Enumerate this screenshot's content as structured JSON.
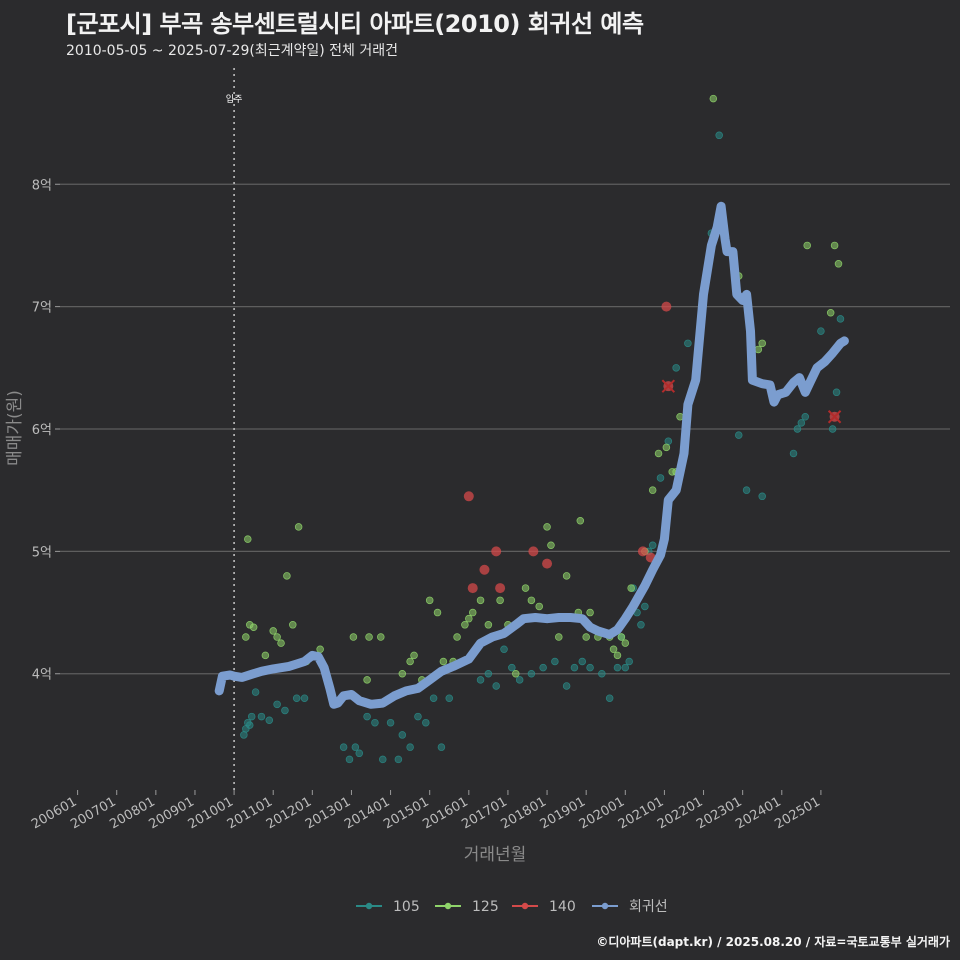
{
  "header": {
    "title": "[군포시] 부곡 송부센트럴시티 아파트(2010) 회귀선 예측",
    "subtitle": "2010-05-05 ~ 2025-07-29(최근계약일) 전체 거래건"
  },
  "footer": {
    "credit": "©디아파트(dapt.kr) / 2025.08.20 / 자료=국토교통부 실거래가"
  },
  "chart_data": {
    "type": "scatter",
    "xlabel": "거래년월",
    "ylabel": "매매가(원)",
    "x_tick_labels": [
      "200601",
      "200701",
      "200801",
      "200901",
      "201001",
      "201101",
      "201201",
      "201301",
      "201401",
      "201501",
      "201601",
      "201701",
      "201801",
      "201901",
      "202001",
      "202101",
      "202201",
      "202301",
      "202401",
      "202501"
    ],
    "y_tick_labels": [
      "4억",
      "5억",
      "6억",
      "7억",
      "8억"
    ],
    "y_tick_values": [
      4,
      5,
      6,
      7,
      8
    ],
    "y_unit": "억",
    "xlim": [
      2005.55,
      2028.3
    ],
    "ylim": [
      3.05,
      8.95
    ],
    "grid": "horizontal",
    "legend_placement": "bottom",
    "annotation": {
      "label": "입주",
      "x": 2010.0
    },
    "colors": {
      "105": "#2a8a86",
      "125": "#8fd46a",
      "140": "#d44a4a",
      "회귀선": "#7b9dcf"
    },
    "series": [
      {
        "name": "105",
        "points": [
          [
            2010.25,
            3.5
          ],
          [
            2010.3,
            3.55
          ],
          [
            2010.35,
            3.6
          ],
          [
            2010.4,
            3.58
          ],
          [
            2010.45,
            3.65
          ],
          [
            2010.55,
            3.85
          ],
          [
            2010.7,
            3.65
          ],
          [
            2010.9,
            3.62
          ],
          [
            2011.1,
            3.75
          ],
          [
            2011.3,
            3.7
          ],
          [
            2011.6,
            3.8
          ],
          [
            2011.8,
            3.8
          ],
          [
            2012.8,
            3.4
          ],
          [
            2012.95,
            3.3
          ],
          [
            2013.1,
            3.4
          ],
          [
            2013.2,
            3.35
          ],
          [
            2013.4,
            3.65
          ],
          [
            2013.6,
            3.6
          ],
          [
            2013.8,
            3.3
          ],
          [
            2014.0,
            3.6
          ],
          [
            2014.2,
            3.3
          ],
          [
            2014.3,
            3.5
          ],
          [
            2014.5,
            3.4
          ],
          [
            2014.7,
            3.65
          ],
          [
            2014.9,
            3.6
          ],
          [
            2015.1,
            3.8
          ],
          [
            2015.3,
            3.4
          ],
          [
            2015.5,
            3.8
          ],
          [
            2016.3,
            3.95
          ],
          [
            2016.5,
            4.0
          ],
          [
            2016.7,
            3.9
          ],
          [
            2016.9,
            4.2
          ],
          [
            2017.1,
            4.05
          ],
          [
            2017.3,
            3.95
          ],
          [
            2017.6,
            4.0
          ],
          [
            2017.9,
            4.05
          ],
          [
            2018.2,
            4.1
          ],
          [
            2018.5,
            3.9
          ],
          [
            2018.7,
            4.05
          ],
          [
            2018.9,
            4.1
          ],
          [
            2019.1,
            4.05
          ],
          [
            2019.4,
            4.0
          ],
          [
            2019.6,
            3.8
          ],
          [
            2019.8,
            4.05
          ],
          [
            2019.9,
            4.3
          ],
          [
            2020.0,
            4.05
          ],
          [
            2020.1,
            4.1
          ],
          [
            2020.2,
            4.7
          ],
          [
            2020.3,
            4.5
          ],
          [
            2020.4,
            4.4
          ],
          [
            2020.5,
            4.55
          ],
          [
            2020.6,
            5.0
          ],
          [
            2020.7,
            5.05
          ],
          [
            2020.9,
            5.6
          ],
          [
            2021.1,
            5.9
          ],
          [
            2021.3,
            6.5
          ],
          [
            2021.6,
            6.7
          ],
          [
            2022.2,
            7.6
          ],
          [
            2022.4,
            8.4
          ],
          [
            2022.9,
            5.95
          ],
          [
            2023.1,
            5.5
          ],
          [
            2023.5,
            5.45
          ],
          [
            2024.3,
            5.8
          ],
          [
            2024.4,
            6.0
          ],
          [
            2024.5,
            6.05
          ],
          [
            2024.6,
            6.1
          ],
          [
            2025.0,
            6.8
          ],
          [
            2025.3,
            6.0
          ],
          [
            2025.4,
            6.3
          ],
          [
            2025.5,
            6.9
          ]
        ]
      },
      {
        "name": "125",
        "points": [
          [
            2010.3,
            4.3
          ],
          [
            2010.35,
            5.1
          ],
          [
            2010.4,
            4.4
          ],
          [
            2010.5,
            4.38
          ],
          [
            2010.8,
            4.15
          ],
          [
            2011.0,
            4.35
          ],
          [
            2011.1,
            4.3
          ],
          [
            2011.2,
            4.25
          ],
          [
            2011.35,
            4.8
          ],
          [
            2011.5,
            4.4
          ],
          [
            2011.65,
            5.2
          ],
          [
            2011.85,
            4.1
          ],
          [
            2012.2,
            4.2
          ],
          [
            2013.05,
            4.3
          ],
          [
            2013.4,
            3.95
          ],
          [
            2013.45,
            4.3
          ],
          [
            2013.75,
            4.3
          ],
          [
            2014.3,
            4.0
          ],
          [
            2014.5,
            4.1
          ],
          [
            2014.6,
            4.15
          ],
          [
            2014.8,
            3.95
          ],
          [
            2015.0,
            4.6
          ],
          [
            2015.2,
            4.5
          ],
          [
            2015.35,
            4.1
          ],
          [
            2015.5,
            4.05
          ],
          [
            2015.6,
            4.1
          ],
          [
            2015.7,
            4.3
          ],
          [
            2015.9,
            4.4
          ],
          [
            2016.0,
            4.45
          ],
          [
            2016.1,
            4.5
          ],
          [
            2016.3,
            4.6
          ],
          [
            2016.5,
            4.4
          ],
          [
            2016.8,
            4.6
          ],
          [
            2017.0,
            4.4
          ],
          [
            2017.2,
            4.0
          ],
          [
            2017.45,
            4.7
          ],
          [
            2017.6,
            4.6
          ],
          [
            2017.8,
            4.55
          ],
          [
            2018.0,
            5.2
          ],
          [
            2018.1,
            5.05
          ],
          [
            2018.3,
            4.3
          ],
          [
            2018.5,
            4.8
          ],
          [
            2018.8,
            4.5
          ],
          [
            2018.85,
            5.25
          ],
          [
            2019.0,
            4.3
          ],
          [
            2019.1,
            4.5
          ],
          [
            2019.3,
            4.3
          ],
          [
            2019.6,
            4.3
          ],
          [
            2019.7,
            4.2
          ],
          [
            2019.75,
            4.35
          ],
          [
            2019.8,
            4.15
          ],
          [
            2019.9,
            4.3
          ],
          [
            2020.0,
            4.25
          ],
          [
            2020.15,
            4.7
          ],
          [
            2020.3,
            4.6
          ],
          [
            2020.5,
            5.0
          ],
          [
            2020.7,
            5.5
          ],
          [
            2020.85,
            5.8
          ],
          [
            2021.05,
            5.85
          ],
          [
            2021.2,
            5.65
          ],
          [
            2021.3,
            5.65
          ],
          [
            2021.4,
            6.1
          ],
          [
            2021.55,
            6.0
          ],
          [
            2022.25,
            8.7
          ],
          [
            2022.9,
            7.25
          ],
          [
            2023.4,
            6.65
          ],
          [
            2023.5,
            6.7
          ],
          [
            2024.65,
            7.5
          ],
          [
            2025.25,
            6.95
          ],
          [
            2025.35,
            7.5
          ],
          [
            2025.45,
            7.35
          ]
        ]
      },
      {
        "name": "140",
        "points": [
          [
            2016.0,
            5.45
          ],
          [
            2016.1,
            4.7
          ],
          [
            2016.4,
            4.85
          ],
          [
            2016.7,
            5.0
          ],
          [
            2016.8,
            4.7
          ],
          [
            2017.65,
            5.0
          ],
          [
            2018.0,
            4.9
          ],
          [
            2020.45,
            5.0
          ],
          [
            2020.65,
            4.95
          ],
          [
            2021.05,
            7.0
          ],
          [
            2021.1,
            6.35
          ],
          [
            2025.35,
            6.1
          ]
        ]
      },
      {
        "name": "회귀선",
        "points": [
          [
            2009.62,
            3.86
          ],
          [
            2009.7,
            3.98
          ],
          [
            2009.9,
            3.99
          ],
          [
            2010.0,
            3.98
          ],
          [
            2010.2,
            3.97
          ],
          [
            2010.5,
            4.0
          ],
          [
            2010.7,
            4.02
          ],
          [
            2011.0,
            4.04
          ],
          [
            2011.4,
            4.06
          ],
          [
            2011.6,
            4.08
          ],
          [
            2011.8,
            4.1
          ],
          [
            2012.0,
            4.15
          ],
          [
            2012.15,
            4.14
          ],
          [
            2012.3,
            4.05
          ],
          [
            2012.45,
            3.88
          ],
          [
            2012.55,
            3.75
          ],
          [
            2012.65,
            3.76
          ],
          [
            2012.8,
            3.82
          ],
          [
            2013.0,
            3.83
          ],
          [
            2013.2,
            3.78
          ],
          [
            2013.5,
            3.75
          ],
          [
            2013.8,
            3.76
          ],
          [
            2014.1,
            3.82
          ],
          [
            2014.4,
            3.86
          ],
          [
            2014.7,
            3.88
          ],
          [
            2015.0,
            3.95
          ],
          [
            2015.3,
            4.02
          ],
          [
            2015.6,
            4.06
          ],
          [
            2016.0,
            4.12
          ],
          [
            2016.3,
            4.25
          ],
          [
            2016.6,
            4.3
          ],
          [
            2016.9,
            4.33
          ],
          [
            2017.2,
            4.4
          ],
          [
            2017.4,
            4.45
          ],
          [
            2017.7,
            4.46
          ],
          [
            2018.0,
            4.45
          ],
          [
            2018.3,
            4.46
          ],
          [
            2018.6,
            4.46
          ],
          [
            2018.9,
            4.45
          ],
          [
            2019.1,
            4.38
          ],
          [
            2019.3,
            4.35
          ],
          [
            2019.6,
            4.32
          ],
          [
            2019.8,
            4.36
          ],
          [
            2020.0,
            4.45
          ],
          [
            2020.2,
            4.55
          ],
          [
            2020.5,
            4.72
          ],
          [
            2020.7,
            4.85
          ],
          [
            2020.9,
            4.97
          ],
          [
            2021.0,
            5.1
          ],
          [
            2021.1,
            5.42
          ],
          [
            2021.3,
            5.5
          ],
          [
            2021.5,
            5.8
          ],
          [
            2021.6,
            6.2
          ],
          [
            2021.8,
            6.4
          ],
          [
            2022.0,
            7.1
          ],
          [
            2022.2,
            7.5
          ],
          [
            2022.35,
            7.65
          ],
          [
            2022.45,
            7.82
          ],
          [
            2022.55,
            7.55
          ],
          [
            2022.6,
            7.45
          ],
          [
            2022.75,
            7.45
          ],
          [
            2022.85,
            7.1
          ],
          [
            2023.0,
            7.05
          ],
          [
            2023.1,
            7.1
          ],
          [
            2023.2,
            6.8
          ],
          [
            2023.25,
            6.4
          ],
          [
            2023.5,
            6.37
          ],
          [
            2023.7,
            6.36
          ],
          [
            2023.8,
            6.22
          ],
          [
            2023.9,
            6.28
          ],
          [
            2024.1,
            6.3
          ],
          [
            2024.3,
            6.38
          ],
          [
            2024.45,
            6.42
          ],
          [
            2024.6,
            6.3
          ],
          [
            2024.75,
            6.4
          ],
          [
            2024.9,
            6.5
          ],
          [
            2025.1,
            6.55
          ],
          [
            2025.3,
            6.62
          ],
          [
            2025.5,
            6.7
          ],
          [
            2025.6,
            6.72
          ]
        ]
      }
    ]
  }
}
